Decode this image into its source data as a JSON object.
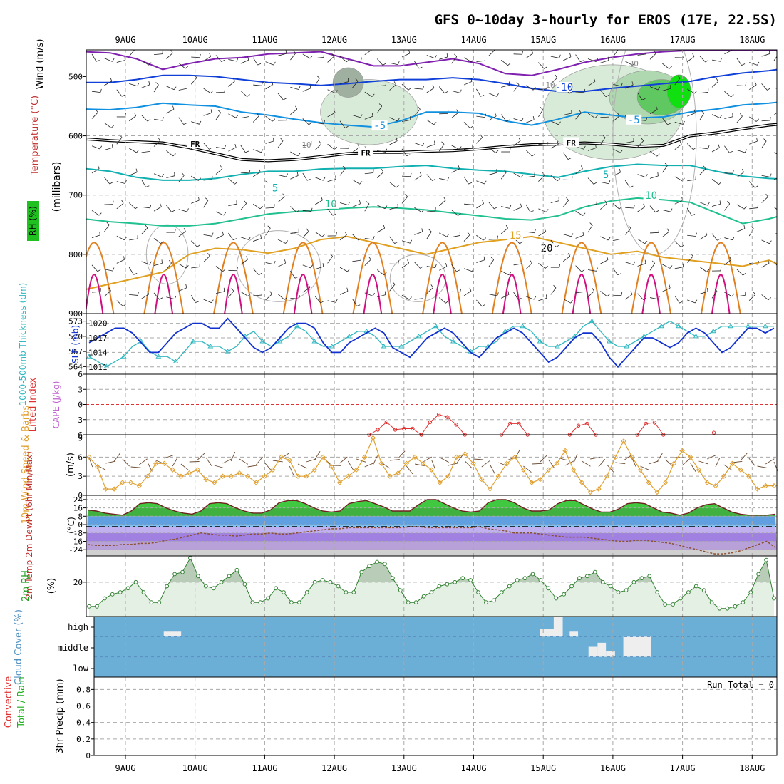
{
  "title": "GFS 0~10day 3-hourly for EROS (17E, 22.5S)",
  "dates": [
    "9AUG",
    "10AUG",
    "11AUG",
    "12AUG",
    "13AUG",
    "14AUG",
    "15AUG",
    "16AUG",
    "17AUG",
    "18AUG"
  ],
  "colors": {
    "frame": "#000000",
    "grid": "#a0a0a0",
    "wind_label": "#000000",
    "temp_label": "#c03030",
    "rh_green": "#20c020",
    "slp": "#1030d0",
    "thick": "#30b8c0",
    "li": "#e03030",
    "cape": "#c060d0",
    "wind10": "#e0a030",
    "temp2m": "#c03030",
    "rh2m": "#20a020",
    "cloud_label": "#5090c0",
    "cloud_fill": "#6baed6",
    "precip_total": "#20b020",
    "precip_conv": "#e03030"
  },
  "chart_data": [
    {
      "type": "contour",
      "panel": "upper-air",
      "ylabel_parts": [
        "Wind (m/s)",
        "Temperature (°C)",
        "RH (%)",
        "(millibars)"
      ],
      "yticks": [
        500,
        600,
        700,
        800,
        900
      ],
      "ylim": [
        900,
        455
      ],
      "isotherm_labels": [
        {
          "text": "-10",
          "x": 6.3,
          "p": 520
        },
        {
          "text": "-5",
          "x": 3.65,
          "p": 585
        },
        {
          "text": "-5",
          "x": 7.3,
          "p": 575
        },
        {
          "text": "FR",
          "x": 1.0,
          "p": 615
        },
        {
          "text": "FR",
          "x": 3.45,
          "p": 630
        },
        {
          "text": "FR",
          "x": 6.4,
          "p": 613
        },
        {
          "text": "5",
          "x": 2.15,
          "p": 690
        },
        {
          "text": "5",
          "x": 6.9,
          "p": 668
        },
        {
          "text": "10",
          "x": 2.95,
          "p": 717
        },
        {
          "text": "10",
          "x": 7.55,
          "p": 703
        },
        {
          "text": "15",
          "x": 5.6,
          "p": 770
        },
        {
          "text": "20",
          "x": 6.05,
          "p": 792
        }
      ],
      "rh_labels": [
        {
          "text": "30",
          "x": 7.3,
          "p": 478
        },
        {
          "text": "10",
          "x": 2.6,
          "p": 615
        },
        {
          "text": "10",
          "x": 6.1,
          "p": 514
        }
      ],
      "isotherms": [
        {
          "level": -15,
          "color": "#8020b0",
          "p": [
            458,
            460,
            470,
            488,
            478,
            470,
            468,
            462,
            460,
            458,
            470,
            482,
            482,
            476,
            470,
            478,
            495,
            498,
            488,
            476,
            468,
            462,
            458,
            456,
            455,
            455,
            455,
            455,
            455
          ]
        },
        {
          "level": -10,
          "color": "#1040d8",
          "p": [
            510,
            510,
            505,
            498,
            498,
            500,
            505,
            510,
            512,
            515,
            512,
            508,
            505,
            505,
            502,
            505,
            512,
            520,
            525,
            525,
            520,
            516,
            512,
            508,
            500,
            494,
            490,
            484,
            476
          ]
        },
        {
          "level": -5,
          "color": "#1090e0",
          "p": [
            555,
            556,
            552,
            545,
            548,
            550,
            560,
            565,
            572,
            578,
            582,
            585,
            575,
            560,
            560,
            562,
            575,
            582,
            572,
            560,
            565,
            570,
            568,
            560,
            555,
            548,
            545,
            540,
            535
          ]
        },
        {
          "level": 0,
          "color": "#000000",
          "p": [
            605,
            608,
            610,
            612,
            620,
            630,
            640,
            642,
            640,
            635,
            630,
            628,
            628,
            626,
            625,
            622,
            618,
            615,
            614,
            612,
            614,
            618,
            616,
            600,
            595,
            588,
            582,
            578,
            572
          ]
        },
        {
          "level": 5,
          "color": "#10b0b0",
          "p": [
            655,
            660,
            670,
            675,
            675,
            672,
            665,
            660,
            660,
            656,
            655,
            655,
            652,
            650,
            655,
            658,
            660,
            665,
            670,
            660,
            652,
            648,
            650,
            650,
            660,
            668,
            672,
            674,
            670
          ]
        },
        {
          "level": 10,
          "color": "#20c090",
          "p": [
            740,
            745,
            748,
            752,
            752,
            748,
            740,
            732,
            728,
            725,
            722,
            720,
            722,
            725,
            730,
            735,
            740,
            742,
            735,
            720,
            710,
            705,
            708,
            712,
            730,
            748,
            740,
            728,
            720
          ]
        },
        {
          "level": 15,
          "color": "#e0a020",
          "p": [
            860,
            850,
            840,
            830,
            800,
            790,
            792,
            798,
            790,
            775,
            770,
            780,
            790,
            800,
            790,
            780,
            775,
            770,
            780,
            790,
            800,
            795,
            805,
            810,
            815,
            820,
            810,
            830,
            830
          ]
        }
      ],
      "rh_shading": [
        {
          "level": "rh>70",
          "color": "#d8ead8",
          "cx": 3.5,
          "cp": 560,
          "rx": 0.7,
          "rp": 55
        },
        {
          "level": "rh>70",
          "color": "#d8ead8",
          "cx": 7.0,
          "cp": 560,
          "rx": 1.0,
          "rp": 80
        },
        {
          "level": "rh>80",
          "color": "#b0d8b0",
          "cx": 7.5,
          "cp": 535,
          "rx": 0.55,
          "rp": 45
        },
        {
          "level": "rh>90",
          "color": "#60c860",
          "cx": 7.7,
          "cp": 535,
          "rx": 0.35,
          "rp": 30
        },
        {
          "level": "rh>95",
          "color": "#10e010",
          "cx": 7.95,
          "cp": 525,
          "rx": 0.17,
          "rp": 28
        },
        {
          "level": "rh>70-dark",
          "color": "#a0b0a0",
          "cx": 3.2,
          "cp": 510,
          "rx": 0.22,
          "rp": 25
        }
      ]
    },
    {
      "type": "line",
      "panel": "thickness-slp",
      "left_label": "1000-500mb Thickness (dm)",
      "right_label": "SLP (mb)",
      "left_ticks": [
        564,
        567,
        570,
        573
      ],
      "right_ticks": [
        1011,
        1014,
        1017,
        1020
      ],
      "thickness_ylim": [
        562.5,
        574.5
      ],
      "slp_ylim": [
        1009.5,
        1022.0
      ],
      "thickness": [
        566,
        565,
        564,
        565,
        566,
        568,
        569,
        567,
        566,
        566,
        565,
        567,
        569,
        569,
        568,
        568,
        567,
        568,
        570,
        571,
        569,
        568,
        569,
        570,
        572,
        571,
        569,
        568,
        568,
        569,
        570,
        571,
        571,
        570,
        568,
        568,
        568,
        569,
        570,
        571,
        572,
        570,
        569,
        568,
        567,
        568,
        568,
        569,
        571,
        572,
        572,
        571,
        569,
        568,
        568,
        569,
        570,
        572,
        573,
        571,
        569,
        568,
        568,
        569,
        570,
        571,
        572,
        573,
        572,
        571,
        570,
        570,
        571,
        572,
        572,
        572,
        572,
        572,
        572,
        572
      ],
      "slp": [
        1016,
        1017,
        1018,
        1019,
        1019,
        1018,
        1016,
        1014,
        1014,
        1016,
        1018,
        1019,
        1020,
        1020,
        1019,
        1019,
        1021,
        1019,
        1017,
        1015,
        1014,
        1015,
        1017,
        1019,
        1020,
        1020,
        1019,
        1016,
        1014,
        1014,
        1016,
        1017,
        1018,
        1019,
        1018,
        1015,
        1014,
        1013,
        1015,
        1017,
        1018,
        1019,
        1018,
        1016,
        1014,
        1013,
        1015,
        1017,
        1018,
        1019,
        1018,
        1016,
        1014,
        1012,
        1013,
        1015,
        1017,
        1018,
        1018,
        1016,
        1013,
        1011,
        1013,
        1015,
        1017,
        1017,
        1016,
        1015,
        1016,
        1018,
        1019,
        1018,
        1016,
        1014,
        1015,
        1017,
        1019,
        1019,
        1018,
        1019
      ]
    },
    {
      "type": "line",
      "panel": "lifted-index-cape",
      "left_label": "Lifted Index",
      "right_label": "CAPE (J/kg)",
      "yticks": [
        -6,
        -3,
        0,
        3,
        6
      ],
      "ytick_labels": [
        "6",
        "3",
        "0",
        "3",
        "6"
      ],
      "ylim": [
        -6,
        6
      ],
      "li_segments": [
        {
          "x0": 3.5,
          "values": [
            6,
            5,
            3.5,
            5,
            4.8,
            4.8,
            6
          ]
        },
        {
          "x0": 4.25,
          "values": [
            6,
            3.5,
            2,
            2.5,
            4,
            6
          ]
        },
        {
          "x0": 5.4,
          "values": [
            6,
            3.8,
            3.8,
            6
          ]
        },
        {
          "x0": 6.38,
          "values": [
            6,
            4.2,
            3.8,
            6
          ]
        },
        {
          "x0": 7.35,
          "values": [
            6,
            3.8,
            3.6,
            6
          ]
        },
        {
          "x0": 8.45,
          "values": [
            5.6
          ]
        }
      ]
    },
    {
      "type": "line",
      "panel": "wind10m",
      "ylabel": "10m Wind Speed & Barbs",
      "unit": "(m/s)",
      "yticks": [
        0,
        3,
        6,
        9
      ],
      "ylim": [
        0,
        9.5
      ],
      "values": [
        6,
        4.5,
        1,
        1,
        2,
        2,
        1.5,
        3,
        5,
        5,
        4,
        3,
        3.5,
        4,
        2.5,
        2,
        3,
        3,
        3.5,
        3,
        2,
        3,
        4,
        6,
        5.5,
        3,
        3,
        4,
        6,
        4.5,
        2,
        3,
        4,
        6,
        9,
        5,
        3,
        3.5,
        5,
        6,
        5,
        4,
        2,
        3,
        6,
        6.5,
        5,
        2.5,
        1,
        3,
        5,
        6,
        4,
        2,
        2.5,
        4,
        5,
        7,
        4,
        2,
        0.5,
        1,
        3,
        6,
        8.5,
        6,
        4,
        2,
        0.5,
        2,
        5,
        7,
        6,
        4,
        2,
        1.5,
        3,
        5,
        4,
        3,
        1,
        1.5,
        1.5
      ]
    },
    {
      "type": "area",
      "panel": "temp2m",
      "ylabel": "2m Temp 2m DewPt (6hr Min/Max)",
      "unit": "(°C)",
      "yticks": [
        -24,
        -16,
        -8,
        0,
        8,
        16,
        24
      ],
      "ylim": [
        -30,
        28
      ],
      "temp": [
        14,
        13,
        11,
        10,
        9,
        13,
        20,
        21,
        20,
        16,
        13,
        11,
        10,
        13,
        20,
        21,
        20,
        16,
        13,
        11,
        11,
        14,
        21,
        23,
        23,
        20,
        16,
        13,
        12,
        13,
        20,
        22,
        23,
        20,
        17,
        13,
        13,
        13,
        19,
        24,
        24,
        20,
        16,
        13,
        12,
        13,
        21,
        24,
        24,
        21,
        16,
        13,
        13,
        14,
        20,
        23,
        23,
        19,
        15,
        12,
        12,
        15,
        20,
        21,
        20,
        16,
        12,
        11,
        9,
        11,
        16,
        19,
        20,
        16,
        12,
        10,
        9,
        9,
        9,
        10
      ],
      "dewpt": [
        -19,
        -20,
        -20,
        -20,
        -19,
        -19,
        -18,
        -18,
        -17,
        -15,
        -14,
        -12,
        -10,
        -8,
        -9,
        -10,
        -10,
        -11,
        -10,
        -9,
        -9,
        -8,
        -9,
        -9,
        -8,
        -7,
        -6,
        -5,
        -4,
        -4,
        -3,
        -3,
        -3,
        -3,
        -3,
        -3,
        -3,
        -2,
        -2,
        -3,
        -3,
        -3,
        -3,
        -3,
        -3,
        -2,
        -4,
        -5,
        -6,
        -8,
        -8,
        -8,
        -9,
        -10,
        -11,
        -12,
        -12,
        -12,
        -13,
        -14,
        -15,
        -16,
        -16,
        -15,
        -15,
        -16,
        -17,
        -18,
        -20,
        -22,
        -24,
        -26,
        -28,
        -28,
        -27,
        -25,
        -22,
        -19,
        -16,
        -22
      ]
    },
    {
      "type": "area",
      "panel": "rh2m",
      "ylabel": "2m RH",
      "unit": "(%)",
      "yticks": [
        20
      ],
      "ylim": [
        3,
        33
      ],
      "values": [
        8,
        8,
        12,
        14,
        15,
        17,
        20,
        15,
        10,
        10,
        18,
        24,
        25,
        32,
        23,
        18,
        17,
        20,
        23,
        26,
        19,
        10,
        10,
        12,
        17,
        15,
        10,
        10,
        15,
        20,
        21,
        20,
        18,
        15,
        15,
        25,
        28,
        30,
        29,
        22,
        16,
        10,
        10,
        13,
        15,
        18,
        19,
        20,
        22,
        21,
        15,
        10,
        11,
        15,
        18,
        21,
        22,
        24,
        21,
        17,
        12,
        14,
        18,
        22,
        23,
        25,
        20,
        18,
        15,
        16,
        20,
        22,
        23,
        15,
        9,
        9,
        12,
        15,
        18,
        16,
        10,
        7,
        7,
        8,
        10,
        15,
        24,
        31,
        12
      ]
    },
    {
      "type": "heatmap",
      "panel": "cloud-cover",
      "ylabel": "Cloud Cover (%)",
      "levels": [
        "high",
        "middle",
        "low"
      ],
      "patches": [
        {
          "level": "high",
          "x0": 0.55,
          "x1": 0.8,
          "frac": 0.25
        },
        {
          "level": "high",
          "x0": 5.95,
          "x1": 6.2,
          "frac": 0.4
        },
        {
          "level": "high",
          "x0": 6.15,
          "x1": 6.28,
          "frac": 1.0
        },
        {
          "level": "high",
          "x0": 6.38,
          "x1": 6.5,
          "frac": 0.25
        },
        {
          "level": "middle",
          "x0": 6.65,
          "x1": 6.78,
          "frac": 0.5
        },
        {
          "level": "middle",
          "x0": 6.78,
          "x1": 6.9,
          "frac": 0.7
        },
        {
          "level": "middle",
          "x0": 6.9,
          "x1": 7.03,
          "frac": 0.3
        },
        {
          "level": "middle",
          "x0": 7.15,
          "x1": 7.55,
          "frac": 1.0
        }
      ]
    },
    {
      "type": "bar",
      "panel": "precip",
      "ylabel_parts": [
        "Total / Rain",
        "Convective",
        "3hr Precip (mm)"
      ],
      "yticks": [
        0,
        0.2,
        0.4,
        0.6,
        0.8
      ],
      "ylim": [
        0,
        0.95
      ],
      "run_total_label": "Run Total = 0",
      "values": []
    }
  ]
}
